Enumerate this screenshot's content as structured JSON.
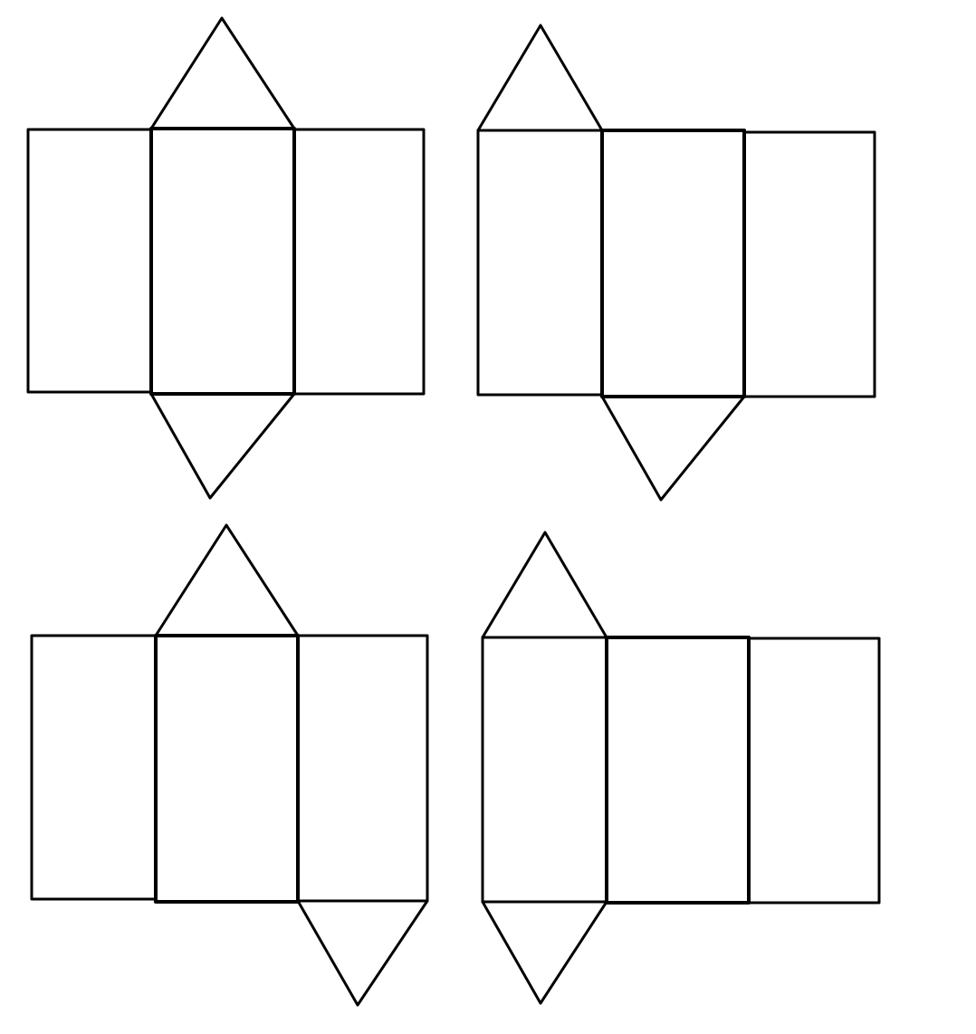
{
  "diagram": {
    "stroke_color": "#000000",
    "background_color": "#ffffff",
    "nets": [
      {
        "name": "net-1",
        "rectangles": 3,
        "triangles": 2,
        "top_triangle_on_panel": 2,
        "bottom_triangle_on_panel": 2
      },
      {
        "name": "net-2",
        "rectangles": 3,
        "triangles": 2,
        "top_triangle_on_panel": 1,
        "bottom_triangle_on_panel": 2
      },
      {
        "name": "net-3",
        "rectangles": 3,
        "triangles": 2,
        "top_triangle_on_panel": 2,
        "bottom_triangle_on_panel": 3
      },
      {
        "name": "net-4",
        "rectangles": 3,
        "triangles": 2,
        "top_triangle_on_panel": 1,
        "bottom_triangle_on_panel": 1
      }
    ]
  }
}
